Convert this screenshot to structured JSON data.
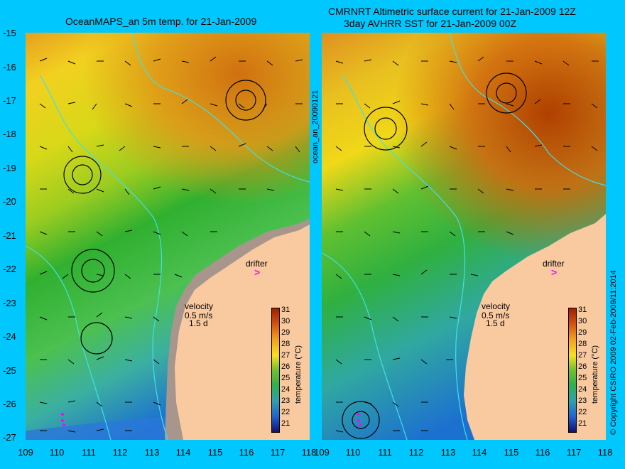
{
  "left_panel": {
    "title": "OceanMAPS_an 5m temp. for 21-Jan-2009"
  },
  "right_panel": {
    "title_line1": "CMRNRT Altimetric surface current for 21-Jan-2009 12Z",
    "title_line2": "3day AVHRR SST for 21-Jan-2009 00Z"
  },
  "axes": {
    "lat_ticks": [
      "-15",
      "-16",
      "-17",
      "-18",
      "-19",
      "-20",
      "-21",
      "-22",
      "-23",
      "-24",
      "-25",
      "-26",
      "-27"
    ],
    "lon_ticks": [
      "109",
      "110",
      "111",
      "112",
      "113",
      "114",
      "115",
      "116",
      "117",
      "118"
    ]
  },
  "labels": {
    "drifter": "drifter",
    "velocity": "velocity",
    "velocity_scale": "0.5 m/s",
    "velocity_days": "1.5 d",
    "colorbar_label": "temperature (°C)",
    "side_id": "ocean_an_20090121",
    "copyright": "© Copyright CSIRO 2009   02-Feb-2009/11:2014"
  },
  "colorbar": {
    "ticks": [
      "31",
      "30",
      "29",
      "28",
      "27",
      "26",
      "25",
      "24",
      "23",
      "22",
      "21"
    ]
  },
  "colors": {
    "background": "#00c8ff",
    "land": "#f9c9a0",
    "land_shelf": "#a8968c",
    "contour": "#40e0e8",
    "drifter": "#ff00ff"
  }
}
